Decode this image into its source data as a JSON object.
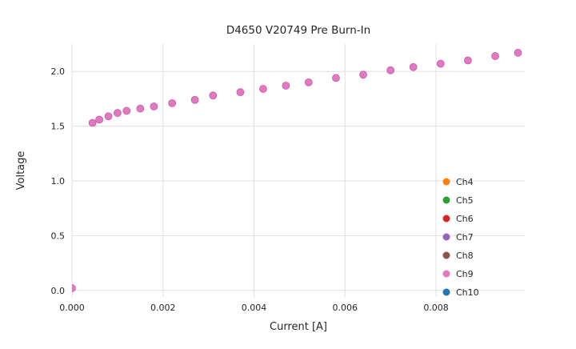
{
  "chart_data": {
    "type": "scatter",
    "title": "D4650 V20749 Pre Burn-In",
    "xlabel": "Current [A]",
    "ylabel": "Voltage",
    "xlim": [
      0,
      0.00995
    ],
    "ylim": [
      -0.06,
      2.25
    ],
    "xticks": [
      0.0,
      0.002,
      0.004,
      0.006,
      0.008
    ],
    "yticks": [
      0.0,
      0.5,
      1.0,
      1.5,
      2.0
    ],
    "grid": true,
    "grid_color": "#e0e0e0",
    "legend_position": "lower right",
    "series": [
      {
        "name": "Ch4",
        "color": "#ff7f0e"
      },
      {
        "name": "Ch5",
        "color": "#2ca02c"
      },
      {
        "name": "Ch6",
        "color": "#d62728"
      },
      {
        "name": "Ch7",
        "color": "#9467bd"
      },
      {
        "name": "Ch8",
        "color": "#8c564b"
      },
      {
        "name": "Ch9",
        "color": "#e377c2"
      },
      {
        "name": "Ch10",
        "color": "#1f77b4"
      }
    ],
    "overlapping_series": true,
    "visible_top_series": "Ch9",
    "point_edge_color": "#c060a8",
    "x": [
      0.0,
      0.00045,
      0.0006,
      0.0008,
      0.001,
      0.0012,
      0.0015,
      0.0018,
      0.0022,
      0.0027,
      0.0031,
      0.0037,
      0.0042,
      0.0047,
      0.0052,
      0.0058,
      0.0064,
      0.007,
      0.0075,
      0.0081,
      0.0087,
      0.0093,
      0.0098
    ],
    "y": [
      0.02,
      1.53,
      1.56,
      1.59,
      1.62,
      1.64,
      1.66,
      1.68,
      1.71,
      1.74,
      1.78,
      1.81,
      1.84,
      1.87,
      1.9,
      1.94,
      1.97,
      2.01,
      2.04,
      2.07,
      2.1,
      2.14,
      2.17
    ]
  }
}
